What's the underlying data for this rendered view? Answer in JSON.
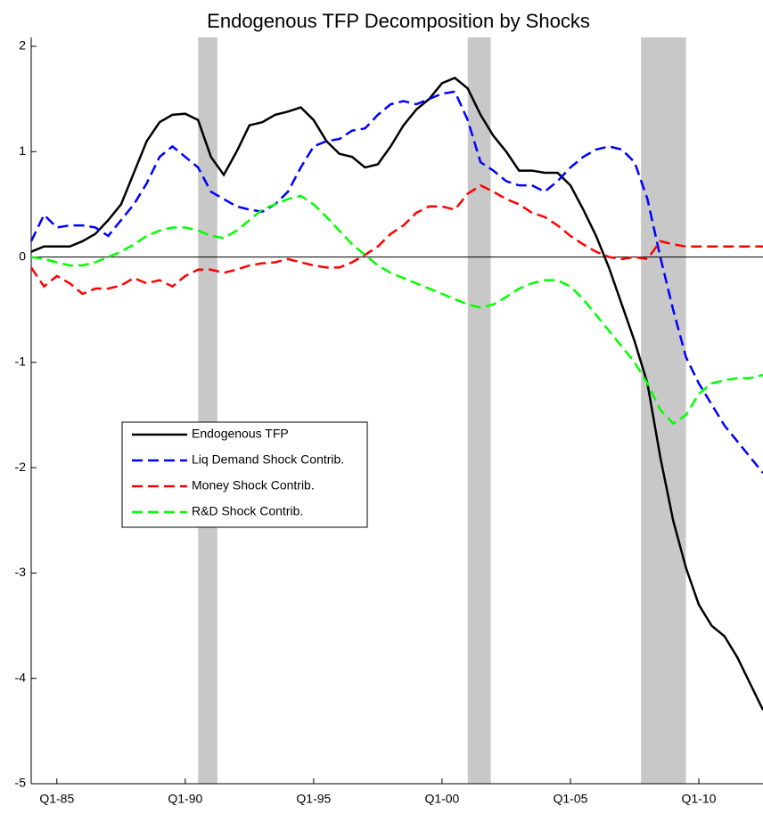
{
  "chart_data": {
    "type": "line",
    "title": "Endogenous TFP Decomposition by Shocks",
    "x": [
      1984,
      1984.5,
      1985,
      1985.5,
      1986,
      1986.5,
      1987,
      1987.5,
      1988,
      1988.5,
      1989,
      1989.5,
      1990,
      1990.5,
      1991,
      1991.5,
      1992,
      1992.5,
      1993,
      1993.5,
      1994,
      1994.5,
      1995,
      1995.5,
      1996,
      1996.5,
      1997,
      1997.5,
      1998,
      1998.5,
      1999,
      1999.5,
      2000,
      2000.5,
      2001,
      2001.5,
      2002,
      2002.5,
      2003,
      2003.5,
      2004,
      2004.5,
      2005,
      2005.5,
      2006,
      2006.5,
      2007,
      2007.5,
      2008,
      2008.5,
      2009,
      2009.5,
      2010,
      2010.5,
      2011,
      2011.5,
      2012,
      2012.5
    ],
    "series": [
      {
        "name": "Endogenous TFP",
        "color": "#000000",
        "dash": "solid",
        "values": [
          0.05,
          0.1,
          0.1,
          0.1,
          0.15,
          0.22,
          0.35,
          0.5,
          0.8,
          1.1,
          1.28,
          1.35,
          1.36,
          1.3,
          0.95,
          0.78,
          1.0,
          1.25,
          1.28,
          1.35,
          1.38,
          1.42,
          1.3,
          1.1,
          0.98,
          0.95,
          0.85,
          0.88,
          1.05,
          1.25,
          1.4,
          1.5,
          1.65,
          1.7,
          1.6,
          1.35,
          1.15,
          1.0,
          0.82,
          0.82,
          0.8,
          0.8,
          0.68,
          0.45,
          0.2,
          -0.1,
          -0.45,
          -0.8,
          -1.2,
          -1.9,
          -2.5,
          -2.95,
          -3.3,
          -3.5,
          -3.6,
          -3.8,
          -4.05,
          -4.3
        ]
      },
      {
        "name": "Liq Demand Shock Contrib.",
        "color": "#0000ff",
        "dash": "dashed",
        "values": [
          0.15,
          0.4,
          0.28,
          0.3,
          0.3,
          0.28,
          0.2,
          0.35,
          0.5,
          0.7,
          0.95,
          1.05,
          0.95,
          0.85,
          0.62,
          0.55,
          0.48,
          0.45,
          0.43,
          0.5,
          0.62,
          0.85,
          1.05,
          1.1,
          1.12,
          1.2,
          1.22,
          1.35,
          1.45,
          1.48,
          1.45,
          1.5,
          1.55,
          1.57,
          1.3,
          0.9,
          0.82,
          0.72,
          0.68,
          0.68,
          0.62,
          0.72,
          0.85,
          0.95,
          1.02,
          1.05,
          1.02,
          0.9,
          0.55,
          0.0,
          -0.5,
          -0.95,
          -1.2,
          -1.4,
          -1.6,
          -1.75,
          -1.9,
          -2.05
        ]
      },
      {
        "name": "Money Shock Contrib.",
        "color": "#ff0000",
        "dash": "dashed",
        "values": [
          -0.1,
          -0.28,
          -0.18,
          -0.25,
          -0.35,
          -0.3,
          -0.3,
          -0.27,
          -0.2,
          -0.25,
          -0.22,
          -0.28,
          -0.18,
          -0.12,
          -0.12,
          -0.15,
          -0.12,
          -0.08,
          -0.06,
          -0.05,
          -0.02,
          -0.05,
          -0.08,
          -0.1,
          -0.1,
          -0.05,
          0.02,
          0.1,
          0.22,
          0.3,
          0.42,
          0.48,
          0.48,
          0.45,
          0.6,
          0.68,
          0.62,
          0.55,
          0.5,
          0.42,
          0.38,
          0.3,
          0.2,
          0.12,
          0.05,
          0.0,
          -0.02,
          0.0,
          -0.02,
          0.15,
          0.12,
          0.1,
          0.1,
          0.1,
          0.1,
          0.1,
          0.1,
          0.1
        ]
      },
      {
        "name": "R&D Shock Contrib.",
        "color": "#00ff00",
        "dash": "dashed",
        "values": [
          0.0,
          -0.02,
          -0.05,
          -0.08,
          -0.08,
          -0.05,
          0.0,
          0.05,
          0.12,
          0.2,
          0.25,
          0.28,
          0.28,
          0.25,
          0.2,
          0.18,
          0.25,
          0.35,
          0.45,
          0.5,
          0.55,
          0.58,
          0.5,
          0.38,
          0.25,
          0.12,
          0.02,
          -0.08,
          -0.15,
          -0.2,
          -0.25,
          -0.3,
          -0.35,
          -0.4,
          -0.45,
          -0.48,
          -0.45,
          -0.38,
          -0.3,
          -0.25,
          -0.22,
          -0.22,
          -0.28,
          -0.4,
          -0.55,
          -0.7,
          -0.85,
          -1.0,
          -1.2,
          -1.45,
          -1.58,
          -1.5,
          -1.3,
          -1.2,
          -1.17,
          -1.15,
          -1.15,
          -1.12
        ]
      }
    ],
    "shaded_periods": [
      [
        1990.5,
        1991.25
      ],
      [
        2001,
        2001.9
      ],
      [
        2007.75,
        2009.5
      ]
    ],
    "shade_color": "#c8c8c8",
    "xlim": [
      1984,
      2012.5
    ],
    "xticks": [
      {
        "value": 1985,
        "label": "Q1-85"
      },
      {
        "value": 1990,
        "label": "Q1-90"
      },
      {
        "value": 1995,
        "label": "Q1-95"
      },
      {
        "value": 2000,
        "label": "Q1-00"
      },
      {
        "value": 2005,
        "label": "Q1-05"
      },
      {
        "value": 2010,
        "label": "Q1-10"
      }
    ],
    "ylim": [
      -5,
      2
    ],
    "yticks": [
      -5,
      -4,
      -3,
      -2,
      -1,
      0,
      1,
      2
    ],
    "legend": "lower-left"
  }
}
